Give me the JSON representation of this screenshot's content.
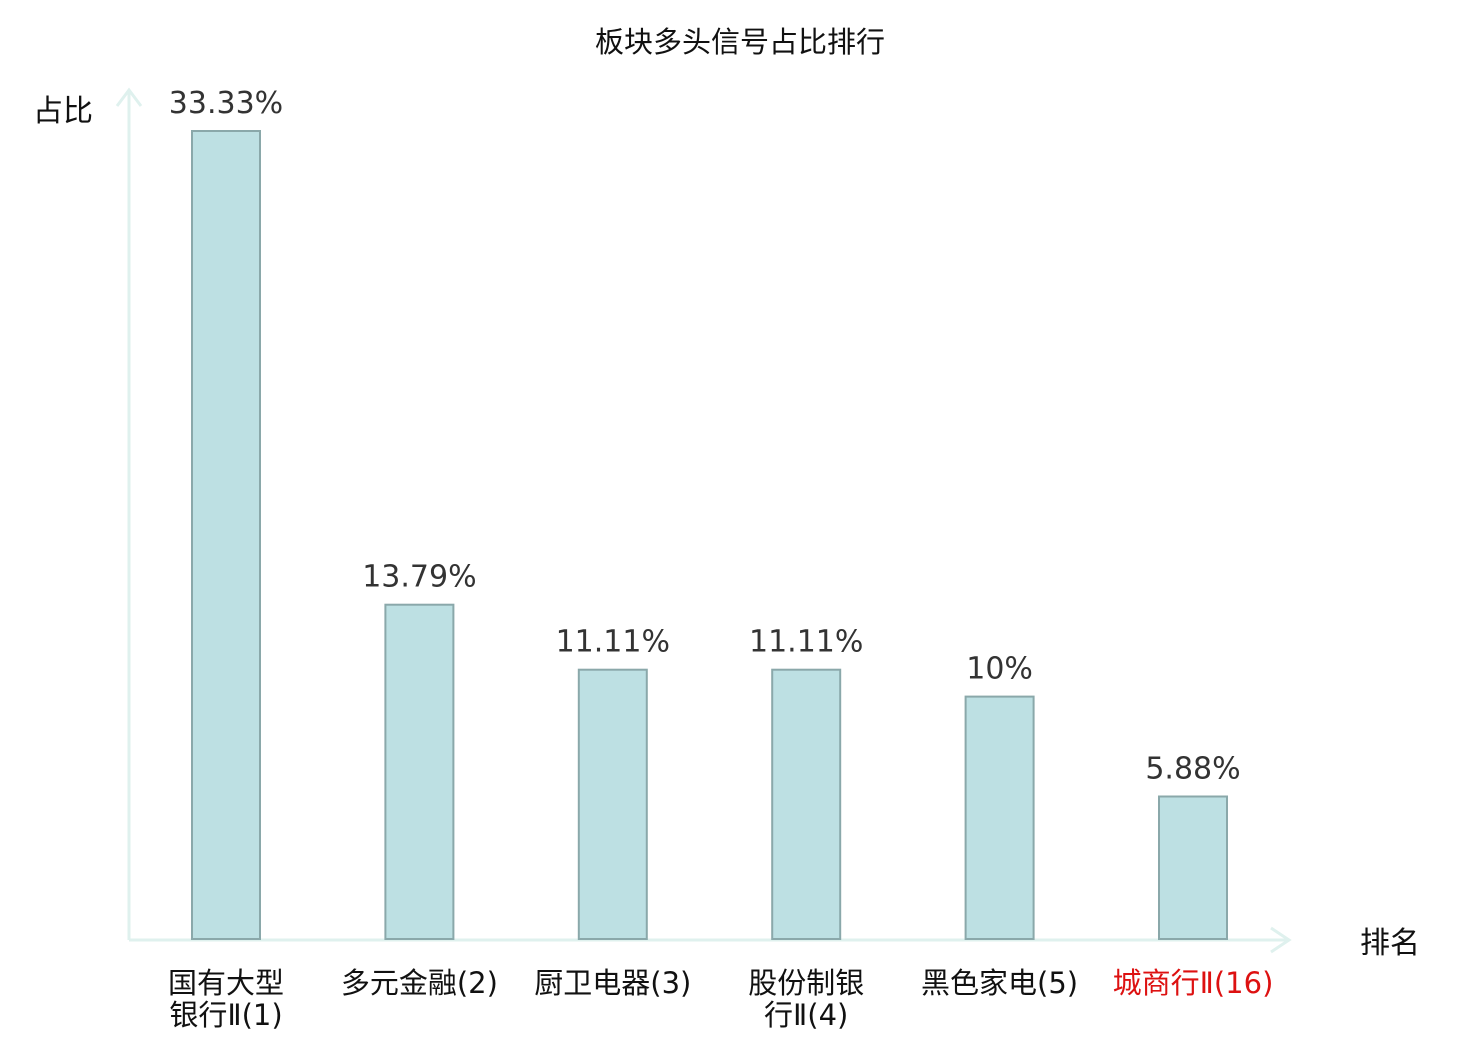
{
  "chart_data": {
    "type": "bar",
    "title": "板块多头信号占比排行",
    "ylabel": "占比",
    "xlabel": "排名",
    "ylim": [
      0,
      35
    ],
    "grid": false,
    "categories": [
      [
        "国有大型",
        "银行Ⅱ(1)"
      ],
      [
        "多元金融(2)"
      ],
      [
        "厨卫电器(3)"
      ],
      [
        "股份制银",
        "行Ⅱ(4)"
      ],
      [
        "黑色家电(5)"
      ],
      [
        "城商行Ⅱ(16)"
      ]
    ],
    "values": [
      33.33,
      13.79,
      11.11,
      11.11,
      10,
      5.88
    ],
    "value_labels": [
      "33.33%",
      "13.79%",
      "11.11%",
      "11.11%",
      "10%",
      "5.88%"
    ],
    "highlight_index": 5
  },
  "colors": {
    "bar_fill": "#bde0e3",
    "bar_stroke": "#8aa8aa",
    "axis": "#dff1ee",
    "label": "#111111",
    "value_label": "#333333",
    "highlight_label": "#dd1111"
  }
}
